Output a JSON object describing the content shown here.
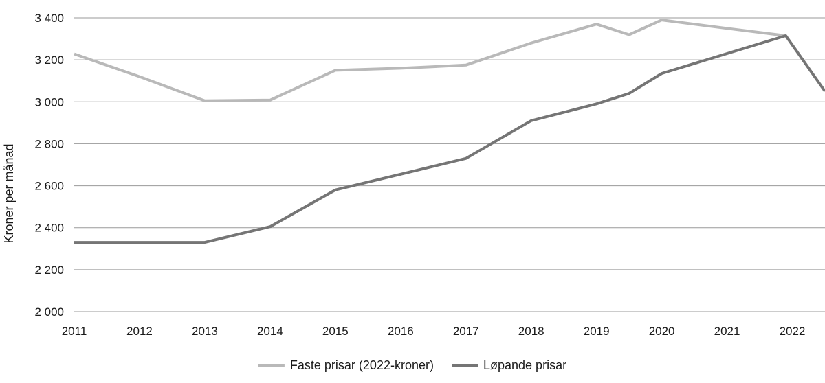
{
  "chart_data": {
    "type": "line",
    "title": "",
    "xlabel": "",
    "ylabel": "Kroner per månad",
    "ylim": [
      2000,
      3400
    ],
    "xlim": [
      2011,
      2022.5
    ],
    "yticks": [
      2000,
      2200,
      2400,
      2600,
      2800,
      3000,
      3200,
      3400
    ],
    "ytick_labels": [
      "2 000",
      "2 200",
      "2 400",
      "2 600",
      "2 800",
      "3 000",
      "3 200",
      "3 400"
    ],
    "xticks": [
      2011,
      2012,
      2013,
      2014,
      2015,
      2016,
      2017,
      2018,
      2019,
      2020,
      2021,
      2022
    ],
    "xtick_labels": [
      "2011",
      "2012",
      "2013",
      "2014",
      "2015",
      "2016",
      "2017",
      "2018",
      "2019",
      "2020",
      "2021",
      "2022"
    ],
    "grid": "horizontal",
    "legend_position": "bottom",
    "series": [
      {
        "name": "Faste prisar (2022-kroner)",
        "color": "#b9b9b9",
        "points": [
          [
            2011,
            3228
          ],
          [
            2012,
            3120
          ],
          [
            2013,
            3005
          ],
          [
            2014,
            3008
          ],
          [
            2015,
            3150
          ],
          [
            2016,
            3160
          ],
          [
            2017,
            3175
          ],
          [
            2018,
            3280
          ],
          [
            2019,
            3370
          ],
          [
            2019.5,
            3320
          ],
          [
            2020,
            3390
          ],
          [
            2021,
            3350
          ],
          [
            2021.9,
            3315
          ]
        ]
      },
      {
        "name": "Løpande prisar",
        "color": "#757575",
        "points": [
          [
            2011,
            2330
          ],
          [
            2012,
            2330
          ],
          [
            2013,
            2330
          ],
          [
            2014,
            2405
          ],
          [
            2015,
            2580
          ],
          [
            2016,
            2655
          ],
          [
            2017,
            2730
          ],
          [
            2018,
            2910
          ],
          [
            2019,
            2990
          ],
          [
            2019.5,
            3040
          ],
          [
            2020,
            3135
          ],
          [
            2021,
            3230
          ],
          [
            2021.9,
            3315
          ],
          [
            2022.5,
            3050
          ]
        ]
      }
    ]
  }
}
